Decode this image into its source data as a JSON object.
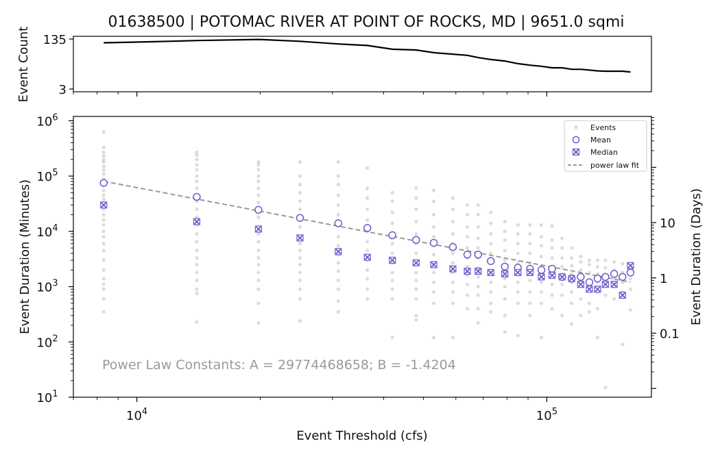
{
  "chart_data": [
    {
      "type": "line",
      "title": "01638500 | POTOMAC RIVER AT POINT OF ROCKS, MD | 9651.0 sqmi",
      "ylabel": "Event Count",
      "yticks": [
        "135",
        "3"
      ],
      "ylim": [
        3,
        135
      ],
      "x": [
        8300,
        11000,
        14000,
        19800,
        25000,
        31000,
        36500,
        42000,
        48000,
        53000,
        59000,
        64000,
        68000,
        73000,
        79000,
        85000,
        91000,
        97000,
        103000,
        109000,
        115000,
        121000,
        127000,
        133000,
        139000,
        146000,
        153000,
        160000
      ],
      "values": [
        125,
        128,
        131,
        134,
        129,
        122,
        118,
        108,
        106,
        99,
        95,
        92,
        86,
        81,
        77,
        70,
        66,
        63,
        59,
        59,
        55,
        55,
        53,
        51,
        50,
        50,
        50,
        48
      ],
      "color": "#000000"
    },
    {
      "type": "scatter",
      "xlabel": "Event Threshold (cfs)",
      "ylabel": "Event Duration (Minutes)",
      "ylabel_right": "Event Duration (Days)",
      "xscale": "log",
      "yscale": "log",
      "xlim": [
        7000,
        180000
      ],
      "ylim": [
        10,
        1200000
      ],
      "xticks": [
        {
          "value": 10000,
          "base": "10",
          "exp": "4"
        },
        {
          "value": 100000,
          "base": "10",
          "exp": "5"
        }
      ],
      "yticks": [
        {
          "value": 10,
          "base": "10",
          "exp": "1"
        },
        {
          "value": 100,
          "base": "10",
          "exp": "2"
        },
        {
          "value": 1000,
          "base": "10",
          "exp": "3"
        },
        {
          "value": 10000,
          "base": "10",
          "exp": "4"
        },
        {
          "value": 100000,
          "base": "10",
          "exp": "5"
        },
        {
          "value": 1000000,
          "base": "10",
          "exp": "6"
        }
      ],
      "yticks_right": [
        {
          "value": 0.1,
          "label": "0.1"
        },
        {
          "value": 1,
          "label": "1"
        },
        {
          "value": 10,
          "label": "10"
        }
      ],
      "legend": {
        "placement": "top-right",
        "entries": [
          "Events",
          "Mean",
          "Median",
          "power law fit"
        ]
      },
      "annotation": "Power Law Constants: A = 29774468658; B = -1.4204",
      "power_law": {
        "A": 29774468658,
        "B": -1.4204
      },
      "colors": {
        "events": "#9a9a9a",
        "mean": "#6a5acd",
        "median": "#6a5acd",
        "fit": "#999999"
      },
      "thresholds": [
        8300,
        14000,
        19800,
        25000,
        31000,
        36500,
        42000,
        48000,
        53000,
        59000,
        64000,
        68000,
        73000,
        79000,
        85000,
        91000,
        97000,
        103000,
        109000,
        115000,
        121000,
        127000,
        133000,
        139000,
        146000,
        153000,
        160000
      ],
      "mean": [
        75000,
        42000,
        24500,
        17500,
        14000,
        11500,
        8500,
        7000,
        6200,
        5200,
        3800,
        3800,
        2900,
        2300,
        2200,
        2100,
        2000,
        2100,
        1500,
        1400,
        1500,
        1200,
        1400,
        1500,
        1700,
        1500,
        1800
      ],
      "median": [
        30000,
        15000,
        11000,
        7600,
        4300,
        3400,
        3000,
        2700,
        2500,
        2100,
        1900,
        1900,
        1800,
        1700,
        1800,
        1800,
        1500,
        1600,
        1500,
        1400,
        1100,
        900,
        900,
        1100,
        1100,
        700,
        2400
      ],
      "events": [
        {
          "x": 8300,
          "y": [
            630000,
            330000,
            270000,
            230000,
            200000,
            180000,
            150000,
            130000,
            110000,
            90000,
            70000,
            55000,
            45000,
            38000,
            30000,
            25000,
            20000,
            16000,
            13000,
            10000,
            8000,
            6000,
            4500,
            3000,
            2000,
            1400,
            1100,
            900,
            600,
            350
          ]
        },
        {
          "x": 14000,
          "y": [
            270000,
            240000,
            200000,
            160000,
            130000,
            100000,
            80000,
            60000,
            45000,
            35000,
            25000,
            18000,
            13000,
            9000,
            6500,
            4500,
            3300,
            2500,
            1800,
            1300,
            900,
            750,
            230
          ]
        },
        {
          "x": 19800,
          "y": [
            180000,
            160000,
            130000,
            100000,
            80000,
            60000,
            45000,
            33000,
            25000,
            18000,
            12000,
            9000,
            6500,
            4500,
            3300,
            2500,
            1800,
            1300,
            900,
            500,
            220
          ]
        },
        {
          "x": 25000,
          "y": [
            180000,
            100000,
            70000,
            50000,
            35000,
            25000,
            17000,
            12000,
            8000,
            6000,
            4500,
            3300,
            2500,
            1800,
            1300,
            900,
            600,
            240
          ]
        },
        {
          "x": 31000,
          "y": [
            180000,
            100000,
            70000,
            45000,
            30000,
            20000,
            13000,
            8000,
            5500,
            3800,
            2700,
            1900,
            1300,
            900,
            550,
            350
          ]
        },
        {
          "x": 36500,
          "y": [
            140000,
            60000,
            40000,
            25000,
            16000,
            10000,
            6500,
            4500,
            3000,
            2000,
            1400,
            900,
            600
          ]
        },
        {
          "x": 42000,
          "y": [
            50000,
            35000,
            22000,
            14000,
            9000,
            6000,
            4000,
            2700,
            1800,
            1300,
            900,
            600,
            120
          ]
        },
        {
          "x": 48000,
          "y": [
            60000,
            40000,
            25000,
            15000,
            9000,
            6000,
            4000,
            2500,
            1800,
            1300,
            900,
            600,
            300,
            250
          ]
        },
        {
          "x": 53000,
          "y": [
            55000,
            35000,
            20000,
            12000,
            8000,
            5500,
            3800,
            2600,
            1800,
            1200,
            800,
            500,
            120
          ]
        },
        {
          "x": 59000,
          "y": [
            40000,
            25000,
            15000,
            9000,
            6000,
            4000,
            2700,
            1800,
            1200,
            800,
            500,
            120
          ]
        },
        {
          "x": 64000,
          "y": [
            30000,
            20000,
            12000,
            8000,
            5000,
            3300,
            2300,
            1600,
            1100,
            700,
            400
          ]
        },
        {
          "x": 68000,
          "y": [
            30000,
            20000,
            12000,
            7500,
            5000,
            3300,
            2200,
            1500,
            1000,
            700,
            400,
            220
          ]
        },
        {
          "x": 73000,
          "y": [
            22000,
            14000,
            9000,
            6000,
            4000,
            2700,
            1800,
            1200,
            800,
            500,
            350
          ]
        },
        {
          "x": 79000,
          "y": [
            15000,
            10000,
            7000,
            4500,
            3000,
            2000,
            1400,
            1000,
            600,
            300,
            150
          ]
        },
        {
          "x": 85000,
          "y": [
            13000,
            9000,
            6000,
            4000,
            2700,
            1800,
            1200,
            800,
            500,
            130
          ]
        },
        {
          "x": 91000,
          "y": [
            13000,
            9000,
            6000,
            4000,
            2700,
            1800,
            1300,
            800,
            500,
            300
          ]
        },
        {
          "x": 97000,
          "y": [
            13000,
            8000,
            5500,
            3500,
            2400,
            1700,
            1200,
            800,
            500,
            120
          ]
        },
        {
          "x": 103000,
          "y": [
            12500,
            7000,
            5000,
            3300,
            2300,
            1600,
            1100,
            700,
            400
          ]
        },
        {
          "x": 109000,
          "y": [
            7500,
            5000,
            3300,
            2300,
            1600,
            1100,
            700,
            300
          ]
        },
        {
          "x": 115000,
          "y": [
            5000,
            3300,
            2400,
            1700,
            1200,
            800,
            500,
            210
          ]
        },
        {
          "x": 121000,
          "y": [
            3500,
            2800,
            2000,
            1400,
            1000,
            600,
            300
          ]
        },
        {
          "x": 127000,
          "y": [
            3000,
            2500,
            1800,
            1300,
            900,
            500,
            350
          ]
        },
        {
          "x": 133000,
          "y": [
            3000,
            2300,
            1700,
            1200,
            800,
            400,
            120
          ]
        },
        {
          "x": 139000,
          "y": [
            3000,
            2200,
            1600,
            1100,
            700,
            15
          ]
        },
        {
          "x": 146000,
          "y": [
            2800,
            2000,
            1400,
            1000,
            600
          ]
        },
        {
          "x": 153000,
          "y": [
            2600,
            1800,
            1200,
            800,
            90
          ]
        },
        {
          "x": 160000,
          "y": [
            2600,
            2000,
            1400,
            900,
            380
          ]
        }
      ]
    }
  ]
}
